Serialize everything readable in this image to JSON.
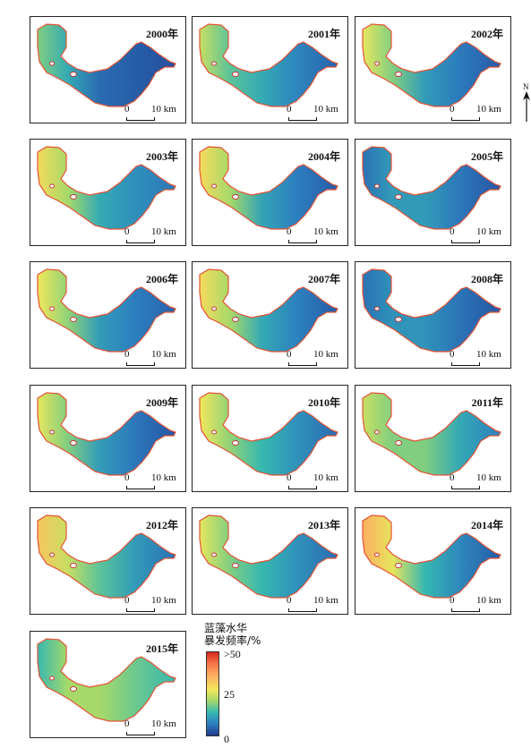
{
  "panels": [
    {
      "year": "2000年",
      "west_red": 0.55,
      "mid_level": 0.18,
      "east_level": 0.08
    },
    {
      "year": "2001年",
      "west_red": 0.65,
      "mid_level": 0.4,
      "east_level": 0.15
    },
    {
      "year": "2002年",
      "west_red": 0.7,
      "mid_level": 0.35,
      "east_level": 0.12
    },
    {
      "year": "2003年",
      "west_red": 0.75,
      "mid_level": 0.4,
      "east_level": 0.22
    },
    {
      "year": "2004年",
      "west_red": 0.75,
      "mid_level": 0.38,
      "east_level": 0.12
    },
    {
      "year": "2005年",
      "west_red": 0.2,
      "mid_level": 0.35,
      "east_level": 0.1
    },
    {
      "year": "2006年",
      "west_red": 0.72,
      "mid_level": 0.35,
      "east_level": 0.15
    },
    {
      "year": "2007年",
      "west_red": 0.75,
      "mid_level": 0.4,
      "east_level": 0.12
    },
    {
      "year": "2008年",
      "west_red": 0.2,
      "mid_level": 0.32,
      "east_level": 0.1
    },
    {
      "year": "2009年",
      "west_red": 0.7,
      "mid_level": 0.35,
      "east_level": 0.1
    },
    {
      "year": "2010年",
      "west_red": 0.72,
      "mid_level": 0.45,
      "east_level": 0.18
    },
    {
      "year": "2011年",
      "west_red": 0.65,
      "mid_level": 0.55,
      "east_level": 0.25
    },
    {
      "year": "2012年",
      "west_red": 0.8,
      "mid_level": 0.5,
      "east_level": 0.2
    },
    {
      "year": "2013年",
      "west_red": 0.7,
      "mid_level": 0.45,
      "east_level": 0.18
    },
    {
      "year": "2014年",
      "west_red": 0.85,
      "mid_level": 0.45,
      "east_level": 0.12
    },
    {
      "year": "2015年",
      "west_red": 0.45,
      "mid_level": 0.6,
      "east_level": 0.45
    }
  ],
  "scale": {
    "zero": "0",
    "distance": "10 km"
  },
  "north": {
    "letter": "N",
    "icon": "north-arrow-icon"
  },
  "legend": {
    "title_line1": "蓝藻水华",
    "title_line2": "暴发频率/%",
    "max_label": ">50",
    "mid_label": "25",
    "min_label": "0",
    "colors": [
      "#d7261e",
      "#fdae61",
      "#f2e85a",
      "#36b8b0",
      "#213a8f"
    ]
  }
}
